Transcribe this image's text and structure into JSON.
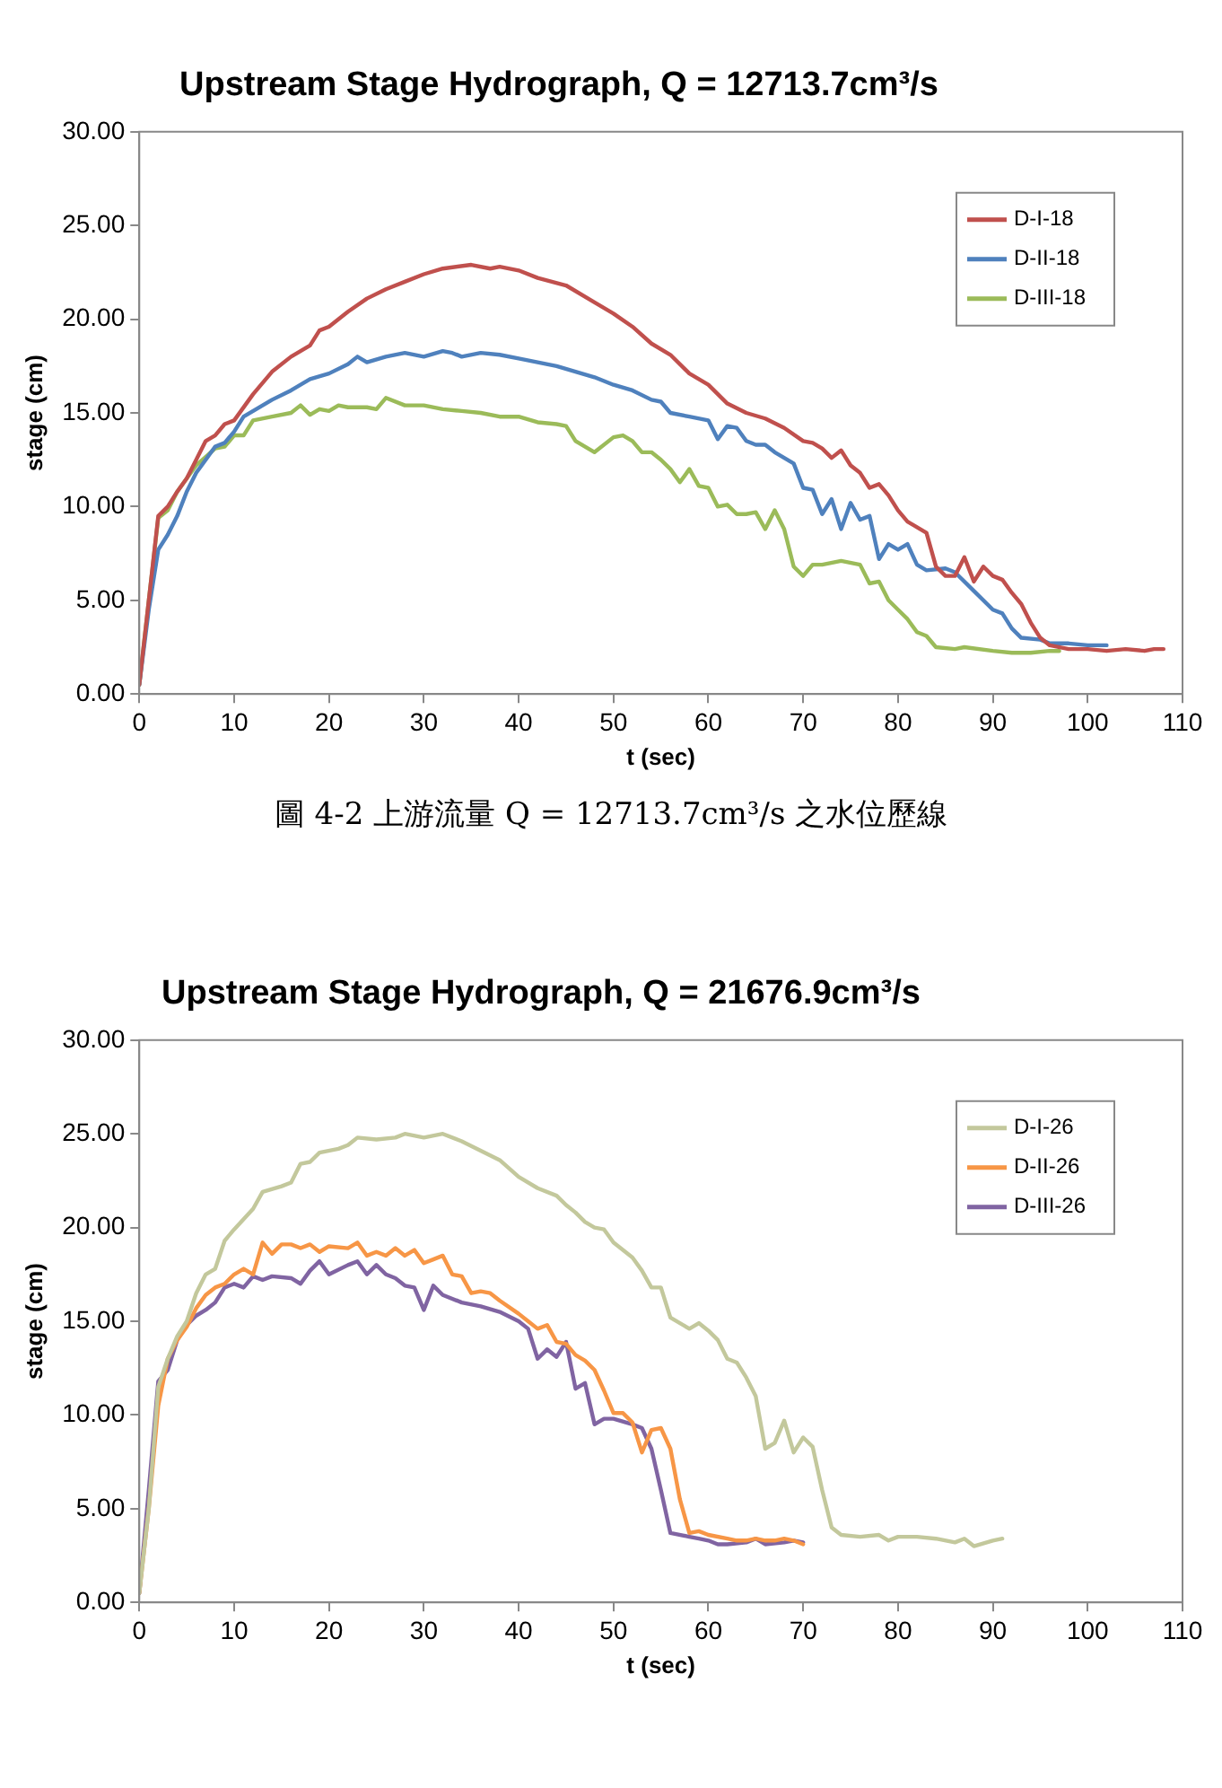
{
  "chart_data": [
    {
      "type": "line",
      "title": "Upstream Stage Hydrograph, Q = 12713.7cm³/s",
      "xlabel": "t (sec)",
      "ylabel": "stage (cm)",
      "annotations": [
        "圖 4-2 上游流量 Q = 12713.7cm³/s 之水位歷線"
      ],
      "legend": "top right",
      "grid": false,
      "xlim": [
        0,
        110
      ],
      "xticks": [
        0,
        10,
        20,
        30,
        40,
        50,
        60,
        70,
        80,
        90,
        100,
        110
      ],
      "ylim": [
        0,
        30
      ],
      "yticks": [
        {
          "value": 0,
          "label": "0.00"
        },
        {
          "value": 5,
          "label": "5.00"
        },
        {
          "value": 10,
          "label": "10.00"
        },
        {
          "value": 15,
          "label": "15.00"
        },
        {
          "value": 20,
          "label": "20.00"
        },
        {
          "value": 25,
          "label": "25.00"
        },
        {
          "value": 30,
          "label": "30.00"
        }
      ],
      "series": [
        {
          "name": "D-I-18",
          "color": "#c0504d",
          "x": [
            0,
            1,
            2,
            3,
            4,
            5,
            6,
            7,
            8,
            9,
            10,
            12,
            14,
            16,
            18,
            19,
            20,
            22,
            24,
            26,
            28,
            30,
            32,
            35,
            37,
            38,
            40,
            42,
            45,
            48,
            50,
            52,
            54,
            56,
            58,
            60,
            62,
            64,
            66,
            68,
            70,
            71,
            72,
            73,
            74,
            75,
            76,
            77,
            78,
            79,
            80,
            81,
            82,
            83,
            84,
            85,
            86,
            87,
            88,
            89,
            90,
            91,
            92,
            93,
            94,
            95,
            96,
            98,
            100,
            102,
            104,
            106,
            107,
            108
          ],
          "values": [
            0.5,
            5,
            9.5,
            10,
            10.8,
            11.5,
            12.5,
            13.5,
            13.8,
            14.4,
            14.6,
            16,
            17.2,
            18,
            18.6,
            19.4,
            19.6,
            20.4,
            21.1,
            21.6,
            22,
            22.4,
            22.7,
            22.9,
            22.7,
            22.8,
            22.6,
            22.2,
            21.8,
            20.9,
            20.3,
            19.6,
            18.7,
            18.1,
            17.1,
            16.5,
            15.5,
            15,
            14.7,
            14.2,
            13.5,
            13.4,
            13.1,
            12.6,
            13,
            12.2,
            11.8,
            11,
            11.2,
            10.6,
            9.8,
            9.2,
            8.9,
            8.6,
            6.8,
            6.3,
            6.3,
            7.3,
            6,
            6.8,
            6.3,
            6.1,
            5.4,
            4.8,
            3.8,
            3,
            2.6,
            2.4,
            2.4,
            2.3,
            2.4,
            2.3,
            2.4,
            2.4
          ]
        },
        {
          "name": "D-II-18",
          "color": "#4f81bd",
          "x": [
            0,
            1,
            2,
            3,
            4,
            5,
            6,
            7,
            8,
            9,
            10,
            11,
            12,
            14,
            16,
            18,
            20,
            22,
            23,
            24,
            26,
            28,
            30,
            32,
            33,
            34,
            36,
            38,
            40,
            42,
            44,
            46,
            48,
            50,
            52,
            54,
            55,
            56,
            58,
            60,
            61,
            62,
            63,
            64,
            65,
            66,
            67,
            68,
            69,
            70,
            71,
            72,
            73,
            74,
            75,
            76,
            77,
            78,
            79,
            80,
            81,
            82,
            83,
            85,
            86,
            88,
            90,
            91,
            92,
            93,
            95,
            96,
            98,
            100,
            102
          ],
          "values": [
            0.5,
            4.5,
            7.7,
            8.5,
            9.5,
            10.8,
            11.8,
            12.5,
            13.2,
            13.4,
            14,
            14.8,
            15.1,
            15.7,
            16.2,
            16.8,
            17.1,
            17.6,
            18,
            17.7,
            18,
            18.2,
            18,
            18.3,
            18.2,
            18,
            18.2,
            18.1,
            17.9,
            17.7,
            17.5,
            17.2,
            16.9,
            16.5,
            16.2,
            15.7,
            15.6,
            15,
            14.8,
            14.6,
            13.6,
            14.3,
            14.2,
            13.5,
            13.3,
            13.3,
            12.9,
            12.6,
            12.3,
            11,
            10.9,
            9.6,
            10.4,
            8.8,
            10.2,
            9.3,
            9.5,
            7.2,
            8,
            7.7,
            8,
            6.9,
            6.6,
            6.7,
            6.5,
            5.5,
            4.5,
            4.3,
            3.5,
            3,
            2.9,
            2.7,
            2.7,
            2.6,
            2.6
          ]
        },
        {
          "name": "D-III-18",
          "color": "#9bbb59",
          "x": [
            0,
            1,
            2,
            3,
            4,
            5,
            6,
            8,
            9,
            10,
            11,
            12,
            14,
            16,
            17,
            18,
            19,
            20,
            21,
            22,
            24,
            25,
            26,
            28,
            30,
            32,
            34,
            36,
            38,
            40,
            42,
            44,
            45,
            46,
            48,
            50,
            51,
            52,
            53,
            54,
            55,
            56,
            57,
            58,
            59,
            60,
            61,
            62,
            63,
            64,
            65,
            66,
            67,
            68,
            69,
            70,
            71,
            72,
            74,
            76,
            77,
            78,
            79,
            80,
            81,
            82,
            83,
            84,
            86,
            87,
            90,
            92,
            94,
            96,
            97
          ],
          "values": [
            0.5,
            5,
            9.4,
            9.8,
            10.8,
            11.5,
            12.2,
            13.1,
            13.2,
            13.8,
            13.8,
            14.6,
            14.8,
            15,
            15.4,
            14.9,
            15.2,
            15.1,
            15.4,
            15.3,
            15.3,
            15.2,
            15.8,
            15.4,
            15.4,
            15.2,
            15.1,
            15,
            14.8,
            14.8,
            14.5,
            14.4,
            14.3,
            13.5,
            12.9,
            13.7,
            13.8,
            13.5,
            12.9,
            12.9,
            12.5,
            12,
            11.3,
            12,
            11.1,
            11,
            10,
            10.1,
            9.6,
            9.6,
            9.7,
            8.8,
            9.8,
            8.8,
            6.8,
            6.3,
            6.9,
            6.9,
            7.1,
            6.9,
            5.9,
            6,
            5,
            4.5,
            4,
            3.3,
            3.1,
            2.5,
            2.4,
            2.5,
            2.3,
            2.2,
            2.2,
            2.3,
            2.3
          ]
        }
      ]
    },
    {
      "type": "line",
      "title": "Upstream Stage Hydrograph, Q = 21676.9cm³/s",
      "xlabel": "t (sec)",
      "ylabel": "stage (cm)",
      "legend": "top right",
      "grid": false,
      "xlim": [
        0,
        110
      ],
      "xticks": [
        0,
        10,
        20,
        30,
        40,
        50,
        60,
        70,
        80,
        90,
        100,
        110
      ],
      "ylim": [
        0,
        30
      ],
      "yticks": [
        {
          "value": 0,
          "label": "0.00"
        },
        {
          "value": 5,
          "label": "5.00"
        },
        {
          "value": 10,
          "label": "10.00"
        },
        {
          "value": 15,
          "label": "15.00"
        },
        {
          "value": 20,
          "label": "20.00"
        },
        {
          "value": 25,
          "label": "25.00"
        },
        {
          "value": 30,
          "label": "30.00"
        }
      ],
      "series": [
        {
          "name": "D-I-26",
          "color": "#c3c89c",
          "x": [
            0,
            1,
            2,
            3,
            4,
            5,
            6,
            7,
            8,
            9,
            10,
            12,
            13,
            15,
            16,
            17,
            18,
            19,
            21,
            22,
            23,
            25,
            27,
            28,
            30,
            32,
            34,
            36,
            38,
            40,
            42,
            44,
            45,
            46,
            47,
            48,
            49,
            50,
            52,
            53,
            54,
            55,
            56,
            58,
            59,
            60,
            61,
            62,
            63,
            64,
            65,
            66,
            67,
            68,
            69,
            70,
            71,
            72,
            73,
            74,
            76,
            78,
            79,
            80,
            82,
            84,
            86,
            87,
            88,
            90,
            91
          ],
          "values": [
            0.5,
            5,
            11.5,
            13,
            14.2,
            15,
            16.5,
            17.5,
            17.8,
            19.3,
            19.9,
            21,
            21.9,
            22.2,
            22.4,
            23.4,
            23.5,
            24,
            24.2,
            24.4,
            24.8,
            24.7,
            24.8,
            25,
            24.8,
            25,
            24.6,
            24.1,
            23.6,
            22.7,
            22.1,
            21.7,
            21.2,
            20.8,
            20.3,
            20,
            19.9,
            19.2,
            18.4,
            17.7,
            16.8,
            16.8,
            15.2,
            14.6,
            14.9,
            14.5,
            14,
            13,
            12.8,
            12,
            11,
            8.2,
            8.5,
            9.7,
            8,
            8.8,
            8.3,
            6,
            4,
            3.6,
            3.5,
            3.6,
            3.3,
            3.5,
            3.5,
            3.4,
            3.2,
            3.4,
            3,
            3.3,
            3.4
          ]
        },
        {
          "name": "D-II-26",
          "color": "#f79646",
          "x": [
            0,
            1,
            2,
            3,
            4,
            5,
            6,
            7,
            8,
            9,
            10,
            11,
            12,
            13,
            14,
            15,
            16,
            17,
            18,
            19,
            20,
            22,
            23,
            24,
            25,
            26,
            27,
            28,
            29,
            30,
            31,
            32,
            33,
            34,
            35,
            36,
            37,
            38,
            40,
            41,
            42,
            43,
            44,
            45,
            46,
            47,
            48,
            49,
            50,
            51,
            52,
            53,
            54,
            55,
            56,
            57,
            58,
            59,
            60,
            62,
            63,
            64,
            65,
            66,
            67,
            68,
            69,
            70
          ],
          "values": [
            0.5,
            5,
            10.5,
            13,
            14,
            14.7,
            15.7,
            16.4,
            16.8,
            17,
            17.5,
            17.8,
            17.5,
            19.2,
            18.6,
            19.1,
            19.1,
            18.9,
            19.1,
            18.7,
            19,
            18.9,
            19.2,
            18.5,
            18.7,
            18.5,
            18.9,
            18.5,
            18.8,
            18.1,
            18.3,
            18.5,
            17.5,
            17.4,
            16.5,
            16.6,
            16.5,
            16.1,
            15.4,
            15,
            14.6,
            14.8,
            13.9,
            13.8,
            13.2,
            12.9,
            12.4,
            11.3,
            10.1,
            10.1,
            9.6,
            8,
            9.2,
            9.3,
            8.2,
            5.5,
            3.7,
            3.8,
            3.6,
            3.4,
            3.3,
            3.3,
            3.4,
            3.3,
            3.3,
            3.4,
            3.3,
            3.1
          ]
        },
        {
          "name": "D-III-26",
          "color": "#8064a2",
          "x": [
            0,
            1,
            2,
            3,
            4,
            5,
            6,
            7,
            8,
            9,
            10,
            11,
            12,
            13,
            14,
            16,
            17,
            18,
            19,
            20,
            22,
            23,
            24,
            25,
            26,
            27,
            28,
            29,
            30,
            31,
            32,
            34,
            36,
            38,
            40,
            41,
            42,
            43,
            44,
            45,
            46,
            47,
            48,
            49,
            50,
            52,
            53,
            54,
            55,
            56,
            58,
            59,
            60,
            61,
            62,
            64,
            65,
            66,
            68,
            69,
            70
          ],
          "values": [
            0.5,
            6,
            11.8,
            12.4,
            14,
            14.8,
            15.3,
            15.6,
            16,
            16.8,
            17,
            16.8,
            17.4,
            17.2,
            17.4,
            17.3,
            17,
            17.7,
            18.2,
            17.5,
            18,
            18.2,
            17.5,
            18,
            17.5,
            17.3,
            16.9,
            16.8,
            15.6,
            16.9,
            16.4,
            16,
            15.8,
            15.5,
            15,
            14.6,
            13,
            13.5,
            13.1,
            13.9,
            11.4,
            11.7,
            9.5,
            9.8,
            9.8,
            9.5,
            9.3,
            8.2,
            6,
            3.7,
            3.5,
            3.4,
            3.3,
            3.1,
            3.1,
            3.2,
            3.4,
            3.1,
            3.2,
            3.3,
            3.2
          ]
        }
      ]
    }
  ]
}
